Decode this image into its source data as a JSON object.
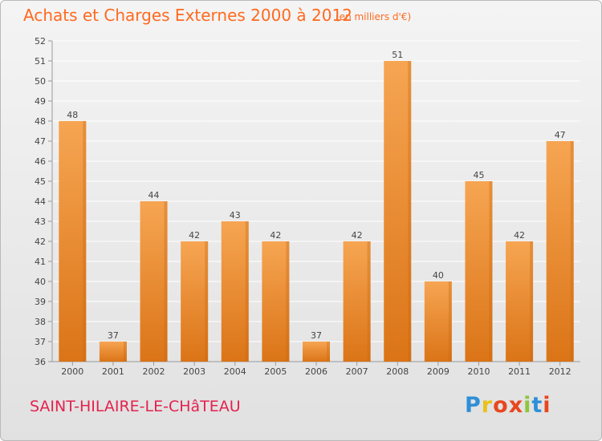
{
  "header": {
    "title": "Achats et Charges Externes 2000 à 2012",
    "subtitle": "(en milliers d'€)"
  },
  "footer": {
    "commune": "SAINT-HILAIRE-LE-CHâTEAU",
    "logo_letters": [
      "P",
      "r",
      "o",
      "x",
      "i",
      "t",
      "i"
    ],
    "logo_colors": [
      "#2f8fd8",
      "#e8c21a",
      "#e8461f",
      "#e8461f",
      "#8cc63e",
      "#2f8fd8",
      "#e8461f"
    ]
  },
  "colors": {
    "bar_top": "#f6a552",
    "bar_bottom": "#db7417",
    "bar_side": "#c8660f",
    "grid": "#ffffff",
    "axis_text": "#444444"
  },
  "chart_data": {
    "type": "bar",
    "categories": [
      "2000",
      "2001",
      "2002",
      "2003",
      "2004",
      "2005",
      "2006",
      "2007",
      "2008",
      "2009",
      "2010",
      "2011",
      "2012"
    ],
    "values": [
      48,
      37,
      44,
      42,
      43,
      42,
      37,
      42,
      51,
      40,
      45,
      42,
      47
    ],
    "title": "Achats et Charges Externes 2000 à 2012",
    "subtitle": "(en milliers d'€)",
    "xlabel": "",
    "ylabel": "",
    "ylim": [
      36,
      52
    ],
    "yticks": [
      36,
      37,
      38,
      39,
      40,
      41,
      42,
      43,
      44,
      45,
      46,
      47,
      48,
      49,
      50,
      51,
      52
    ],
    "grid": true,
    "data_labels": true
  }
}
